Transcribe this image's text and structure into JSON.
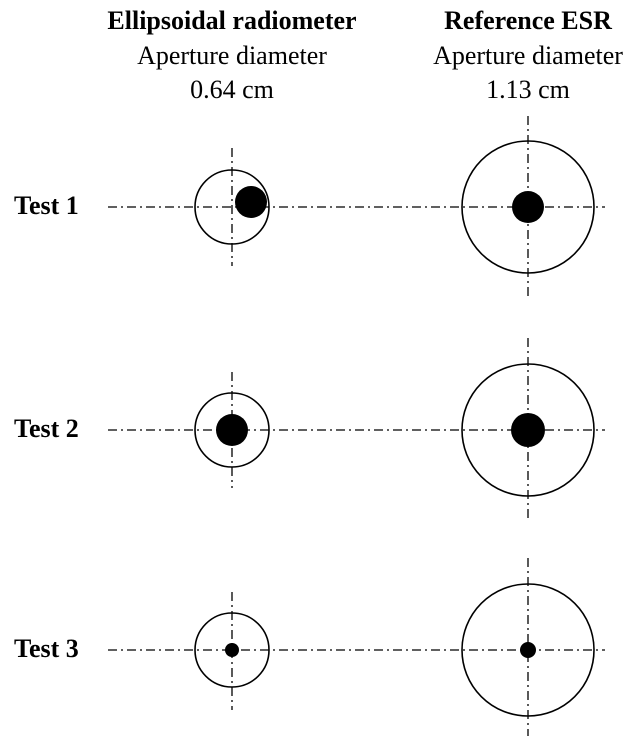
{
  "columns": [
    {
      "title": "Ellipsoidal radiometer",
      "subtitle": "Aperture diameter",
      "size": "0.64 cm"
    },
    {
      "title": "Reference ESR",
      "subtitle": "Aperture diameter",
      "size": "1.13 cm"
    }
  ],
  "rows": [
    {
      "label": "Test 1"
    },
    {
      "label": "Test 2"
    },
    {
      "label": "Test 3"
    }
  ]
}
